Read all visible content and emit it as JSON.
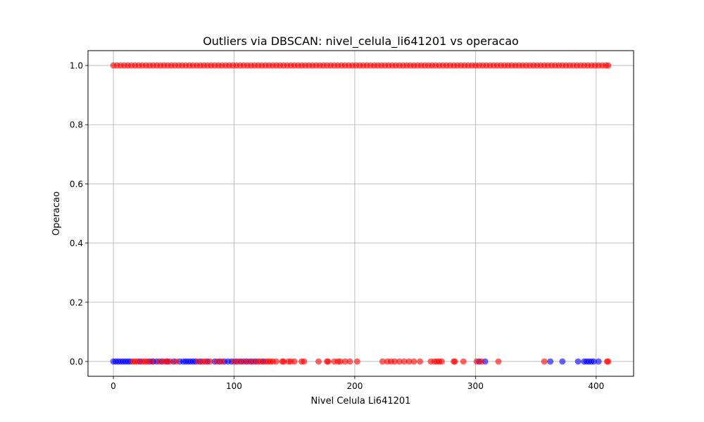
{
  "chart_data": {
    "type": "scatter",
    "title": "Outliers via DBSCAN: nivel_celula_li641201 vs operacao",
    "xlabel": "Nivel Celula Li641201",
    "ylabel": "Operacao",
    "xlim": [
      -21,
      431
    ],
    "ylim": [
      -0.05,
      1.05
    ],
    "xticks": [
      0,
      100,
      200,
      300,
      400
    ],
    "xtick_labels": [
      "0",
      "100",
      "200",
      "300",
      "400"
    ],
    "yticks": [
      0.0,
      0.2,
      0.4,
      0.6,
      0.8,
      1.0
    ],
    "ytick_labels": [
      "0.0",
      "0.2",
      "0.4",
      "0.6",
      "0.8",
      "1.0"
    ],
    "grid": true,
    "marker_alpha": 0.6,
    "colors": {
      "cluster": "#0000ff",
      "outlier": "#ff0000"
    },
    "series": [
      {
        "color": "#0000ff",
        "points": [
          {
            "x": 0,
            "y": 0
          },
          {
            "x": 2,
            "y": 0
          },
          {
            "x": 4,
            "y": 0
          },
          {
            "x": 6,
            "y": 0
          },
          {
            "x": 8,
            "y": 0
          },
          {
            "x": 10,
            "y": 0
          },
          {
            "x": 12,
            "y": 0
          },
          {
            "x": 14,
            "y": 0
          },
          {
            "x": 22,
            "y": 0
          },
          {
            "x": 30,
            "y": 0
          },
          {
            "x": 33,
            "y": 0
          },
          {
            "x": 36,
            "y": 0
          },
          {
            "x": 40,
            "y": 0
          },
          {
            "x": 45,
            "y": 0
          },
          {
            "x": 50,
            "y": 0
          },
          {
            "x": 55,
            "y": 0
          },
          {
            "x": 58,
            "y": 0
          },
          {
            "x": 60,
            "y": 0
          },
          {
            "x": 62,
            "y": 0
          },
          {
            "x": 64,
            "y": 0
          },
          {
            "x": 66,
            "y": 0
          },
          {
            "x": 68,
            "y": 0
          },
          {
            "x": 72,
            "y": 0
          },
          {
            "x": 78,
            "y": 0
          },
          {
            "x": 84,
            "y": 0
          },
          {
            "x": 88,
            "y": 0
          },
          {
            "x": 92,
            "y": 0
          },
          {
            "x": 95,
            "y": 0
          },
          {
            "x": 98,
            "y": 0
          },
          {
            "x": 102,
            "y": 0
          },
          {
            "x": 106,
            "y": 0
          },
          {
            "x": 110,
            "y": 0
          },
          {
            "x": 114,
            "y": 0
          },
          {
            "x": 118,
            "y": 0
          },
          {
            "x": 124,
            "y": 0
          },
          {
            "x": 303,
            "y": 0
          },
          {
            "x": 308,
            "y": 0
          },
          {
            "x": 362,
            "y": 0
          },
          {
            "x": 372,
            "y": 0
          },
          {
            "x": 385,
            "y": 0
          },
          {
            "x": 390,
            "y": 0
          },
          {
            "x": 392,
            "y": 0
          },
          {
            "x": 394,
            "y": 0
          },
          {
            "x": 396,
            "y": 0
          },
          {
            "x": 398,
            "y": 0
          },
          {
            "x": 402,
            "y": 0
          }
        ]
      },
      {
        "color": "#ff0000",
        "points": [
          {
            "x": 0,
            "y": 1
          },
          {
            "x": 3,
            "y": 1
          },
          {
            "x": 6,
            "y": 1
          },
          {
            "x": 9,
            "y": 1
          },
          {
            "x": 12,
            "y": 1
          },
          {
            "x": 15,
            "y": 1
          },
          {
            "x": 18,
            "y": 1
          },
          {
            "x": 21,
            "y": 1
          },
          {
            "x": 24,
            "y": 1
          },
          {
            "x": 27,
            "y": 1
          },
          {
            "x": 30,
            "y": 1
          },
          {
            "x": 33,
            "y": 1
          },
          {
            "x": 36,
            "y": 1
          },
          {
            "x": 39,
            "y": 1
          },
          {
            "x": 42,
            "y": 1
          },
          {
            "x": 45,
            "y": 1
          },
          {
            "x": 48,
            "y": 1
          },
          {
            "x": 51,
            "y": 1
          },
          {
            "x": 54,
            "y": 1
          },
          {
            "x": 57,
            "y": 1
          },
          {
            "x": 60,
            "y": 1
          },
          {
            "x": 63,
            "y": 1
          },
          {
            "x": 66,
            "y": 1
          },
          {
            "x": 69,
            "y": 1
          },
          {
            "x": 72,
            "y": 1
          },
          {
            "x": 75,
            "y": 1
          },
          {
            "x": 78,
            "y": 1
          },
          {
            "x": 81,
            "y": 1
          },
          {
            "x": 84,
            "y": 1
          },
          {
            "x": 87,
            "y": 1
          },
          {
            "x": 90,
            "y": 1
          },
          {
            "x": 93,
            "y": 1
          },
          {
            "x": 96,
            "y": 1
          },
          {
            "x": 99,
            "y": 1
          },
          {
            "x": 102,
            "y": 1
          },
          {
            "x": 105,
            "y": 1
          },
          {
            "x": 108,
            "y": 1
          },
          {
            "x": 111,
            "y": 1
          },
          {
            "x": 114,
            "y": 1
          },
          {
            "x": 117,
            "y": 1
          },
          {
            "x": 120,
            "y": 1
          },
          {
            "x": 123,
            "y": 1
          },
          {
            "x": 126,
            "y": 1
          },
          {
            "x": 129,
            "y": 1
          },
          {
            "x": 132,
            "y": 1
          },
          {
            "x": 135,
            "y": 1
          },
          {
            "x": 138,
            "y": 1
          },
          {
            "x": 141,
            "y": 1
          },
          {
            "x": 144,
            "y": 1
          },
          {
            "x": 147,
            "y": 1
          },
          {
            "x": 150,
            "y": 1
          },
          {
            "x": 153,
            "y": 1
          },
          {
            "x": 156,
            "y": 1
          },
          {
            "x": 159,
            "y": 1
          },
          {
            "x": 162,
            "y": 1
          },
          {
            "x": 165,
            "y": 1
          },
          {
            "x": 168,
            "y": 1
          },
          {
            "x": 171,
            "y": 1
          },
          {
            "x": 174,
            "y": 1
          },
          {
            "x": 177,
            "y": 1
          },
          {
            "x": 180,
            "y": 1
          },
          {
            "x": 183,
            "y": 1
          },
          {
            "x": 186,
            "y": 1
          },
          {
            "x": 189,
            "y": 1
          },
          {
            "x": 192,
            "y": 1
          },
          {
            "x": 195,
            "y": 1
          },
          {
            "x": 198,
            "y": 1
          },
          {
            "x": 201,
            "y": 1
          },
          {
            "x": 204,
            "y": 1
          },
          {
            "x": 207,
            "y": 1
          },
          {
            "x": 210,
            "y": 1
          },
          {
            "x": 213,
            "y": 1
          },
          {
            "x": 216,
            "y": 1
          },
          {
            "x": 219,
            "y": 1
          },
          {
            "x": 222,
            "y": 1
          },
          {
            "x": 225,
            "y": 1
          },
          {
            "x": 228,
            "y": 1
          },
          {
            "x": 231,
            "y": 1
          },
          {
            "x": 234,
            "y": 1
          },
          {
            "x": 237,
            "y": 1
          },
          {
            "x": 240,
            "y": 1
          },
          {
            "x": 243,
            "y": 1
          },
          {
            "x": 246,
            "y": 1
          },
          {
            "x": 249,
            "y": 1
          },
          {
            "x": 252,
            "y": 1
          },
          {
            "x": 255,
            "y": 1
          },
          {
            "x": 258,
            "y": 1
          },
          {
            "x": 261,
            "y": 1
          },
          {
            "x": 264,
            "y": 1
          },
          {
            "x": 267,
            "y": 1
          },
          {
            "x": 270,
            "y": 1
          },
          {
            "x": 273,
            "y": 1
          },
          {
            "x": 276,
            "y": 1
          },
          {
            "x": 279,
            "y": 1
          },
          {
            "x": 282,
            "y": 1
          },
          {
            "x": 285,
            "y": 1
          },
          {
            "x": 288,
            "y": 1
          },
          {
            "x": 291,
            "y": 1
          },
          {
            "x": 294,
            "y": 1
          },
          {
            "x": 297,
            "y": 1
          },
          {
            "x": 300,
            "y": 1
          },
          {
            "x": 303,
            "y": 1
          },
          {
            "x": 306,
            "y": 1
          },
          {
            "x": 309,
            "y": 1
          },
          {
            "x": 312,
            "y": 1
          },
          {
            "x": 315,
            "y": 1
          },
          {
            "x": 318,
            "y": 1
          },
          {
            "x": 321,
            "y": 1
          },
          {
            "x": 324,
            "y": 1
          },
          {
            "x": 327,
            "y": 1
          },
          {
            "x": 330,
            "y": 1
          },
          {
            "x": 333,
            "y": 1
          },
          {
            "x": 336,
            "y": 1
          },
          {
            "x": 339,
            "y": 1
          },
          {
            "x": 342,
            "y": 1
          },
          {
            "x": 345,
            "y": 1
          },
          {
            "x": 348,
            "y": 1
          },
          {
            "x": 351,
            "y": 1
          },
          {
            "x": 354,
            "y": 1
          },
          {
            "x": 357,
            "y": 1
          },
          {
            "x": 360,
            "y": 1
          },
          {
            "x": 363,
            "y": 1
          },
          {
            "x": 366,
            "y": 1
          },
          {
            "x": 369,
            "y": 1
          },
          {
            "x": 372,
            "y": 1
          },
          {
            "x": 375,
            "y": 1
          },
          {
            "x": 378,
            "y": 1
          },
          {
            "x": 381,
            "y": 1
          },
          {
            "x": 384,
            "y": 1
          },
          {
            "x": 387,
            "y": 1
          },
          {
            "x": 390,
            "y": 1
          },
          {
            "x": 393,
            "y": 1
          },
          {
            "x": 396,
            "y": 1
          },
          {
            "x": 399,
            "y": 1
          },
          {
            "x": 402,
            "y": 1
          },
          {
            "x": 405,
            "y": 1
          },
          {
            "x": 408,
            "y": 1
          },
          {
            "x": 410,
            "y": 1
          },
          {
            "x": 16,
            "y": 0
          },
          {
            "x": 18,
            "y": 0
          },
          {
            "x": 20,
            "y": 0
          },
          {
            "x": 24,
            "y": 0
          },
          {
            "x": 26,
            "y": 0
          },
          {
            "x": 28,
            "y": 0
          },
          {
            "x": 32,
            "y": 0
          },
          {
            "x": 38,
            "y": 0
          },
          {
            "x": 42,
            "y": 0
          },
          {
            "x": 44,
            "y": 0
          },
          {
            "x": 47,
            "y": 0
          },
          {
            "x": 52,
            "y": 0
          },
          {
            "x": 70,
            "y": 0
          },
          {
            "x": 74,
            "y": 0
          },
          {
            "x": 76,
            "y": 0
          },
          {
            "x": 80,
            "y": 0
          },
          {
            "x": 86,
            "y": 0
          },
          {
            "x": 90,
            "y": 0
          },
          {
            "x": 100,
            "y": 0
          },
          {
            "x": 104,
            "y": 0
          },
          {
            "x": 108,
            "y": 0
          },
          {
            "x": 112,
            "y": 0
          },
          {
            "x": 116,
            "y": 0
          },
          {
            "x": 120,
            "y": 0
          },
          {
            "x": 122,
            "y": 0
          },
          {
            "x": 126,
            "y": 0
          },
          {
            "x": 128,
            "y": 0
          },
          {
            "x": 130,
            "y": 0
          },
          {
            "x": 132,
            "y": 0
          },
          {
            "x": 135,
            "y": 0
          },
          {
            "x": 140,
            "y": 0
          },
          {
            "x": 141,
            "y": 0
          },
          {
            "x": 145,
            "y": 0
          },
          {
            "x": 147,
            "y": 0
          },
          {
            "x": 150,
            "y": 0
          },
          {
            "x": 156,
            "y": 0
          },
          {
            "x": 158,
            "y": 0
          },
          {
            "x": 170,
            "y": 0
          },
          {
            "x": 177,
            "y": 0
          },
          {
            "x": 178,
            "y": 0
          },
          {
            "x": 183,
            "y": 0
          },
          {
            "x": 186,
            "y": 0
          },
          {
            "x": 188,
            "y": 0
          },
          {
            "x": 192,
            "y": 0
          },
          {
            "x": 196,
            "y": 0
          },
          {
            "x": 202,
            "y": 0
          },
          {
            "x": 223,
            "y": 0
          },
          {
            "x": 227,
            "y": 0
          },
          {
            "x": 230,
            "y": 0
          },
          {
            "x": 233,
            "y": 0
          },
          {
            "x": 237,
            "y": 0
          },
          {
            "x": 241,
            "y": 0
          },
          {
            "x": 245,
            "y": 0
          },
          {
            "x": 249,
            "y": 0
          },
          {
            "x": 254,
            "y": 0
          },
          {
            "x": 263,
            "y": 0
          },
          {
            "x": 266,
            "y": 0
          },
          {
            "x": 268,
            "y": 0
          },
          {
            "x": 270,
            "y": 0
          },
          {
            "x": 272,
            "y": 0
          },
          {
            "x": 282,
            "y": 0
          },
          {
            "x": 283,
            "y": 0
          },
          {
            "x": 290,
            "y": 0
          },
          {
            "x": 301,
            "y": 0
          },
          {
            "x": 305,
            "y": 0
          },
          {
            "x": 319,
            "y": 0
          },
          {
            "x": 357,
            "y": 0
          },
          {
            "x": 409,
            "y": 0
          },
          {
            "x": 410,
            "y": 0
          }
        ]
      }
    ]
  }
}
